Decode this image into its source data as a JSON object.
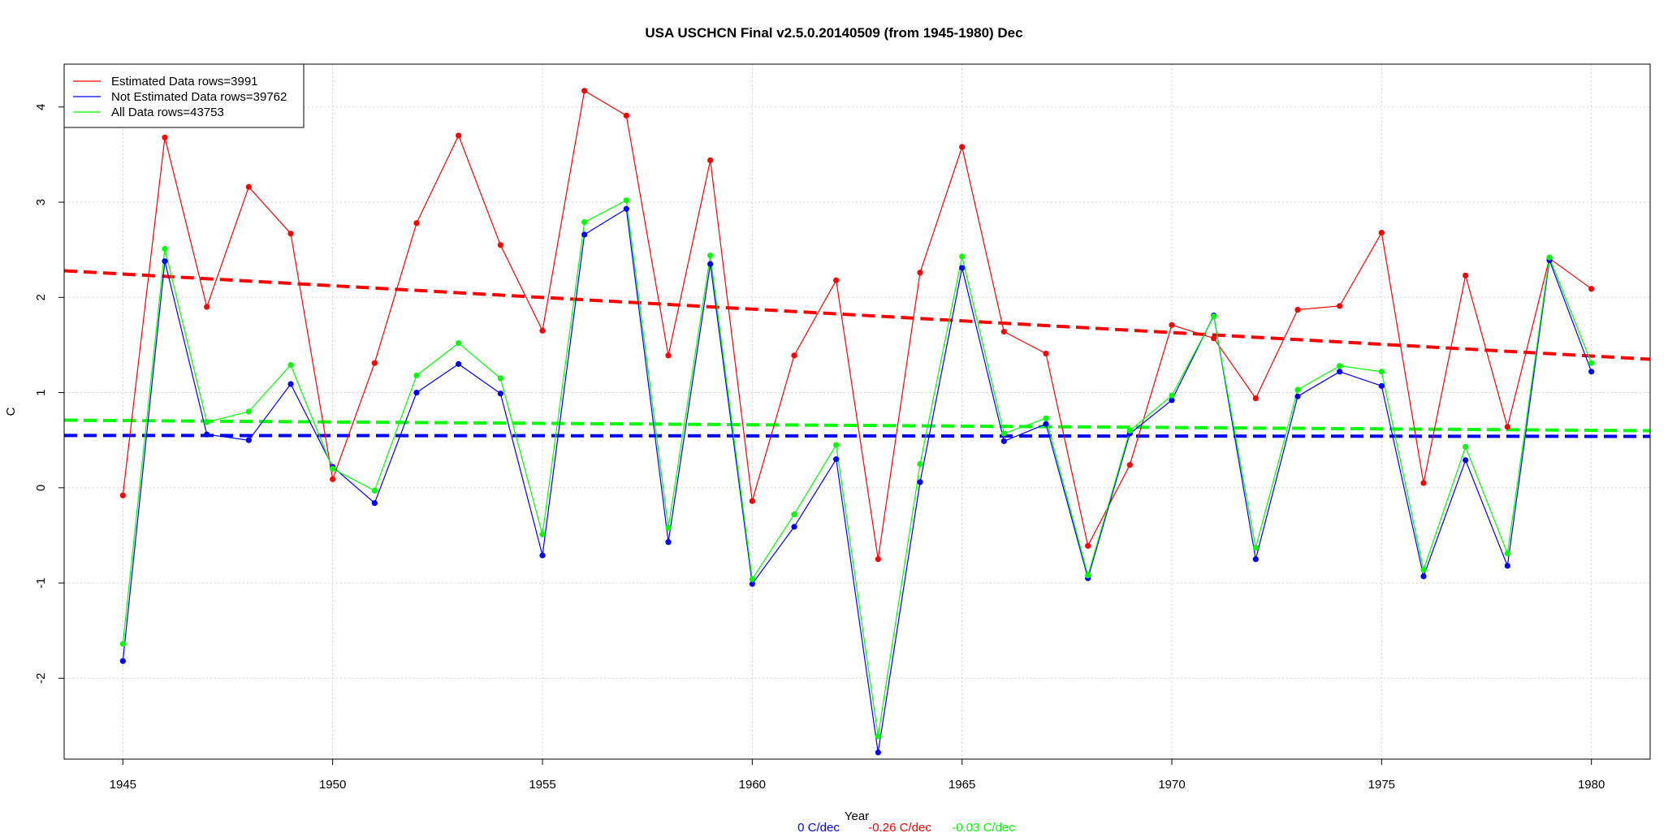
{
  "chart_data": {
    "type": "line",
    "title": "USA USCHCN Final v2.5.0.20140509 (from 1945-1980) Dec",
    "xlabel": "Year",
    "ylabel": "C",
    "xlim": [
      1943.6,
      1981.4
    ],
    "ylim": [
      -2.85,
      4.45
    ],
    "x_ticks": [
      1945,
      1950,
      1955,
      1960,
      1965,
      1970,
      1975,
      1980
    ],
    "y_ticks": [
      -2,
      -1,
      0,
      1,
      2,
      3,
      4
    ],
    "grid": true,
    "legend_position": "top-left",
    "x": [
      1945,
      1946,
      1947,
      1948,
      1949,
      1950,
      1951,
      1952,
      1953,
      1954,
      1955,
      1956,
      1957,
      1958,
      1959,
      1960,
      1961,
      1962,
      1963,
      1964,
      1965,
      1966,
      1967,
      1968,
      1969,
      1970,
      1971,
      1972,
      1973,
      1974,
      1975,
      1976,
      1977,
      1978,
      1979,
      1980
    ],
    "series": [
      {
        "name": "Estimated Data rows=3991",
        "color": "#ff0000",
        "values": [
          -0.08,
          3.68,
          1.9,
          3.16,
          2.67,
          0.09,
          1.31,
          2.78,
          3.7,
          2.55,
          1.65,
          4.17,
          3.91,
          1.39,
          3.44,
          -0.14,
          1.39,
          2.18,
          -0.75,
          2.26,
          3.58,
          1.64,
          1.41,
          -0.61,
          0.24,
          1.71,
          1.57,
          0.94,
          1.87,
          1.91,
          2.68,
          0.05,
          2.23,
          0.64,
          2.41,
          2.09
        ],
        "trend": [
          2.28,
          1.35
        ],
        "trend_label": "-0.26 C/dec"
      },
      {
        "name": "Not Estimated Data rows=39762",
        "color": "#0000ff",
        "values": [
          -1.82,
          2.38,
          0.56,
          0.5,
          1.09,
          0.22,
          -0.16,
          1.0,
          1.3,
          0.99,
          -0.71,
          2.66,
          2.93,
          -0.57,
          2.35,
          -1.01,
          -0.41,
          0.3,
          -2.78,
          0.06,
          2.31,
          0.49,
          0.67,
          -0.95,
          0.57,
          0.92,
          1.81,
          -0.75,
          0.96,
          1.22,
          1.07,
          -0.93,
          0.29,
          -0.82,
          2.39,
          1.22
        ],
        "trend": [
          0.55,
          0.54
        ],
        "trend_label": "0 C/dec"
      },
      {
        "name": "All Data rows=43753",
        "color": "#00ff00",
        "values": [
          -1.64,
          2.51,
          0.69,
          0.8,
          1.29,
          0.2,
          -0.03,
          1.18,
          1.52,
          1.15,
          -0.49,
          2.79,
          3.02,
          -0.42,
          2.44,
          -0.96,
          -0.28,
          0.45,
          -2.61,
          0.25,
          2.43,
          0.57,
          0.73,
          -0.92,
          0.6,
          0.97,
          1.8,
          -0.63,
          1.03,
          1.28,
          1.22,
          -0.86,
          0.43,
          -0.69,
          2.42,
          1.31
        ],
        "trend": [
          0.71,
          0.6
        ],
        "trend_label": "-0.03 C/dec"
      }
    ]
  }
}
